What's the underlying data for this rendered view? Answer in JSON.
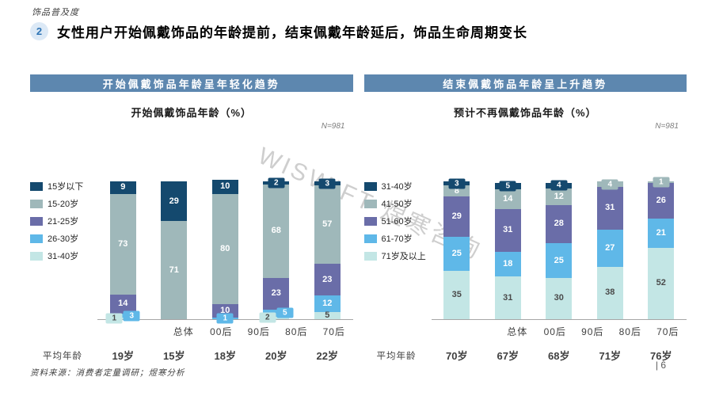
{
  "page": {
    "eyebrow": "饰品普及度",
    "badge": "2",
    "title": "女性用户开始佩戴饰品的年龄提前，结束佩戴年龄延后，饰品生命周期变长",
    "watermark": "WISWIFT 煜寒咨询",
    "footer": "资料来源：消费者定量调研；煜寒分析",
    "page_number": "| 6"
  },
  "colors": {
    "header_bar": "#5d87af",
    "badge_bg": "#dce9f6",
    "badge_text": "#2e74b5",
    "axis_line": "#a6a6a6",
    "watermark_gray": "#c3c3c3",
    "navy": "#14496e",
    "sage": "#9fb8ba",
    "purple": "#6a6da8",
    "sky": "#5fb8e8",
    "pale_cyan": "#c3e6e5"
  },
  "chart_data": [
    {
      "type": "bar",
      "stacked": true,
      "header": "开始佩戴饰品年龄呈年轻化趋势",
      "title": "开始佩戴饰品年龄（%）",
      "sample_label": "N=981",
      "ylim": [
        0,
        100
      ],
      "legend_position": "left",
      "categories": [
        "总体",
        "00后",
        "90后",
        "80后",
        "70后"
      ],
      "series": [
        {
          "name": "15岁以下",
          "color": "#14496e",
          "values": [
            9,
            29,
            10,
            {
              "v": 2,
              "callout": true
            },
            {
              "v": 3,
              "callout": true
            }
          ]
        },
        {
          "name": "15-20岁",
          "color": "#9fb8ba",
          "values": [
            73,
            71,
            80,
            68,
            57
          ]
        },
        {
          "name": "21-25岁",
          "color": "#6a6da8",
          "values": [
            14,
            0,
            10,
            23,
            23
          ]
        },
        {
          "name": "26-30岁",
          "color": "#5fb8e8",
          "values": [
            {
              "v": 3,
              "callout": true
            },
            0,
            {
              "v": 1,
              "callout": true
            },
            {
              "v": 5,
              "callout": true
            },
            12
          ]
        },
        {
          "name": "31-40岁",
          "color": "#c3e6e5",
          "values": [
            {
              "v": 1,
              "callout": true
            },
            0,
            0,
            {
              "v": 2,
              "callout": true
            },
            5
          ]
        }
      ],
      "avg_row": {
        "label": "平均年龄",
        "values": [
          "19岁",
          "15岁",
          "18岁",
          "20岁",
          "22岁"
        ]
      }
    },
    {
      "type": "bar",
      "stacked": true,
      "header": "结束佩戴饰品年龄呈上升趋势",
      "title": "预计不再佩戴饰品年龄（%）",
      "sample_label": "N=981",
      "ylim": [
        0,
        100
      ],
      "legend_position": "left",
      "categories": [
        "总体",
        "00后",
        "90后",
        "80后",
        "70后"
      ],
      "series": [
        {
          "name": "31-40岁",
          "color": "#14496e",
          "values": [
            {
              "v": 3,
              "callout": true
            },
            {
              "v": 5,
              "callout": true
            },
            {
              "v": 4,
              "callout": true
            },
            0,
            0
          ]
        },
        {
          "name": "41-50岁",
          "color": "#9fb8ba",
          "values": [
            8,
            14,
            12,
            {
              "v": 4,
              "callout": true
            },
            {
              "v": 1,
              "callout": true
            }
          ]
        },
        {
          "name": "51-60岁",
          "color": "#6a6da8",
          "values": [
            29,
            31,
            28,
            31,
            26
          ]
        },
        {
          "name": "61-70岁",
          "color": "#5fb8e8",
          "values": [
            25,
            18,
            25,
            27,
            21
          ]
        },
        {
          "name": "71岁及以上",
          "color": "#c3e6e5",
          "values": [
            35,
            31,
            30,
            38,
            52
          ]
        }
      ],
      "avg_row": {
        "label": "平均年龄",
        "values": [
          "70岁",
          "67岁",
          "68岁",
          "71岁",
          "76岁"
        ]
      }
    }
  ]
}
